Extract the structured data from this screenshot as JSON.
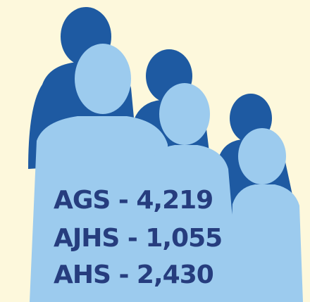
{
  "lines": [
    "AGS - 4,219",
    "AJHS - 1,055",
    "AHS - 2,430"
  ]
}
